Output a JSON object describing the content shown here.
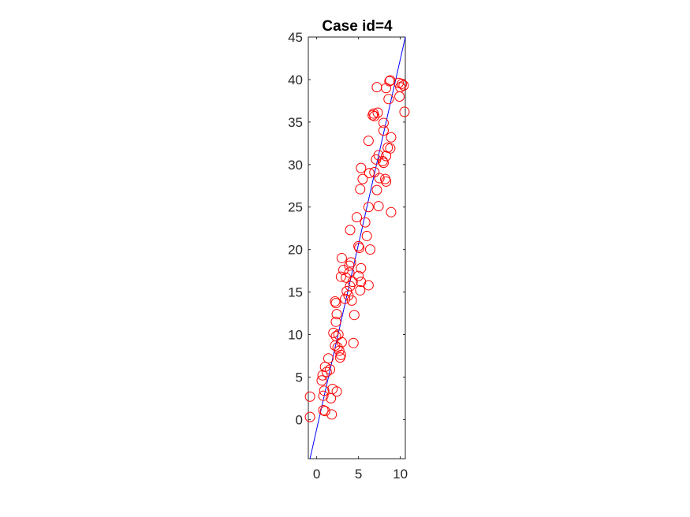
{
  "chart_data": {
    "type": "scatter",
    "title": "Case id=4",
    "xlabel": "",
    "ylabel": "",
    "xlim": [
      -1,
      10.6
    ],
    "ylim": [
      -4.6,
      45
    ],
    "xticks": [
      0,
      5,
      10
    ],
    "yticks": [
      0,
      5,
      10,
      15,
      20,
      25,
      30,
      35,
      40,
      45
    ],
    "grid": false,
    "marker_color": "#ff0000",
    "line_color": "#0000ff",
    "series": [
      {
        "type": "scatter",
        "points": [
          [
            -0.8,
            2.7
          ],
          [
            -0.8,
            0.3
          ],
          [
            0.6,
            4.6
          ],
          [
            0.7,
            5.2
          ],
          [
            0.8,
            2.8
          ],
          [
            1.0,
            6.2
          ],
          [
            0.9,
            3.4
          ],
          [
            0.8,
            1.1
          ],
          [
            1.0,
            1.0
          ],
          [
            1.2,
            5.6
          ],
          [
            1.4,
            7.2
          ],
          [
            1.6,
            5.9
          ],
          [
            1.7,
            2.5
          ],
          [
            1.8,
            0.6
          ],
          [
            1.9,
            3.6
          ],
          [
            2.4,
            3.3
          ],
          [
            2.0,
            10.2
          ],
          [
            2.2,
            8.7
          ],
          [
            2.3,
            9.8
          ],
          [
            2.5,
            8.5
          ],
          [
            2.6,
            10.0
          ],
          [
            2.3,
            11.5
          ],
          [
            2.4,
            12.4
          ],
          [
            2.2,
            13.9
          ],
          [
            2.3,
            13.7
          ],
          [
            2.7,
            8.1
          ],
          [
            2.8,
            7.3
          ],
          [
            3.0,
            9.1
          ],
          [
            2.9,
            7.6
          ],
          [
            2.9,
            16.8
          ],
          [
            3.2,
            17.6
          ],
          [
            3.0,
            19.0
          ],
          [
            3.5,
            16.7
          ],
          [
            3.4,
            14.2
          ],
          [
            3.6,
            15.1
          ],
          [
            3.8,
            14.6
          ],
          [
            3.9,
            17.3
          ],
          [
            4.1,
            18.5
          ],
          [
            3.9,
            18.1
          ],
          [
            4.2,
            14.0
          ],
          [
            4.0,
            15.7
          ],
          [
            4.3,
            16.2
          ],
          [
            4.4,
            9.0
          ],
          [
            4.5,
            12.3
          ],
          [
            5.0,
            16.9
          ],
          [
            5.3,
            17.8
          ],
          [
            5.2,
            15.2
          ],
          [
            5.0,
            20.4
          ],
          [
            5.1,
            20.2
          ],
          [
            5.3,
            16.2
          ],
          [
            6.2,
            15.8
          ],
          [
            4.0,
            22.3
          ],
          [
            4.8,
            23.8
          ],
          [
            6.0,
            21.6
          ],
          [
            5.8,
            23.2
          ],
          [
            6.4,
            20.0
          ],
          [
            6.2,
            25.0
          ],
          [
            7.4,
            25.1
          ],
          [
            8.9,
            24.4
          ],
          [
            5.2,
            27.1
          ],
          [
            5.5,
            28.3
          ],
          [
            5.3,
            29.6
          ],
          [
            6.3,
            29.0
          ],
          [
            6.9,
            29.1
          ],
          [
            7.2,
            27.0
          ],
          [
            7.5,
            28.4
          ],
          [
            8.3,
            28.0
          ],
          [
            8.2,
            28.3
          ],
          [
            7.9,
            30.4
          ],
          [
            8.0,
            30.2
          ],
          [
            8.3,
            31.0
          ],
          [
            7.4,
            31.1
          ],
          [
            7.1,
            30.6
          ],
          [
            8.5,
            32.0
          ],
          [
            8.8,
            31.9
          ],
          [
            8.9,
            33.2
          ],
          [
            6.2,
            32.8
          ],
          [
            8.0,
            34.0
          ],
          [
            8.0,
            34.9
          ],
          [
            6.7,
            35.8
          ],
          [
            6.9,
            35.7
          ],
          [
            7.3,
            36.1
          ],
          [
            6.8,
            36.0
          ],
          [
            7.2,
            39.1
          ],
          [
            8.3,
            39.0
          ],
          [
            8.7,
            39.8
          ],
          [
            8.8,
            39.9
          ],
          [
            9.8,
            39.6
          ],
          [
            10.2,
            39.5
          ],
          [
            10.4,
            39.3
          ],
          [
            10.0,
            39.1
          ],
          [
            8.6,
            37.7
          ],
          [
            9.9,
            38.0
          ],
          [
            10.5,
            36.2
          ]
        ]
      },
      {
        "type": "line",
        "points": [
          [
            -0.8,
            -4.6
          ],
          [
            10.6,
            45.0
          ]
        ]
      }
    ]
  }
}
